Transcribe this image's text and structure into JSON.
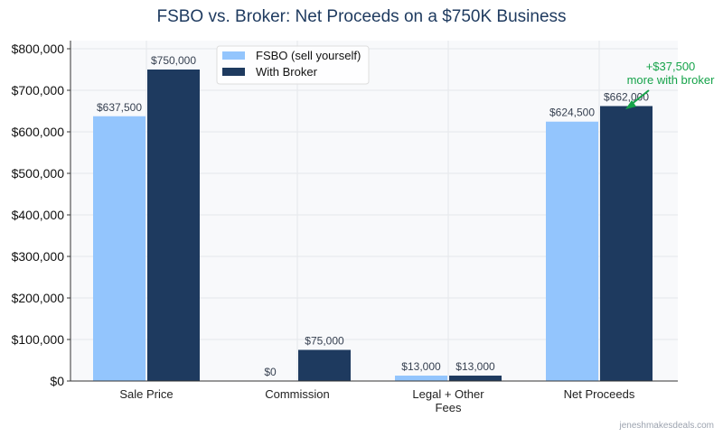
{
  "chart_data": {
    "type": "bar",
    "title": "FSBO vs. Broker: Net Proceeds on a $750K Business",
    "categories": [
      "Sale Price",
      "Commission",
      "Legal + Other Fees",
      "Net Proceeds"
    ],
    "category_lines": [
      [
        "Sale Price"
      ],
      [
        "Commission"
      ],
      [
        "Legal + Other",
        "Fees"
      ],
      [
        "Net Proceeds"
      ]
    ],
    "series": [
      {
        "name": "FSBO (sell yourself)",
        "color": "#93c5fd",
        "values": [
          637500,
          0,
          13000,
          624500
        ],
        "labels": [
          "$637,500",
          "$0",
          "$13,000",
          "$624,500"
        ]
      },
      {
        "name": "With Broker",
        "color": "#1e3a5f",
        "values": [
          750000,
          75000,
          13000,
          662000
        ],
        "labels": [
          "$750,000",
          "$75,000",
          "$13,000",
          "$662,000"
        ]
      }
    ],
    "ylim": [
      0,
      800000
    ],
    "yticks": [
      0,
      100000,
      200000,
      300000,
      400000,
      500000,
      600000,
      700000,
      800000
    ],
    "ytick_labels": [
      "$0",
      "$100,000",
      "$200,000",
      "$300,000",
      "$400,000",
      "$500,000",
      "$600,000",
      "$700,000",
      "$800,000"
    ],
    "grid": true,
    "legend": "top-left",
    "annotation": {
      "lines": [
        "+$37,500",
        "more with broker"
      ],
      "color": "#16a34a",
      "points_to": "Net Proceeds / With Broker"
    }
  },
  "watermark": "jeneshmakesdeals.com"
}
